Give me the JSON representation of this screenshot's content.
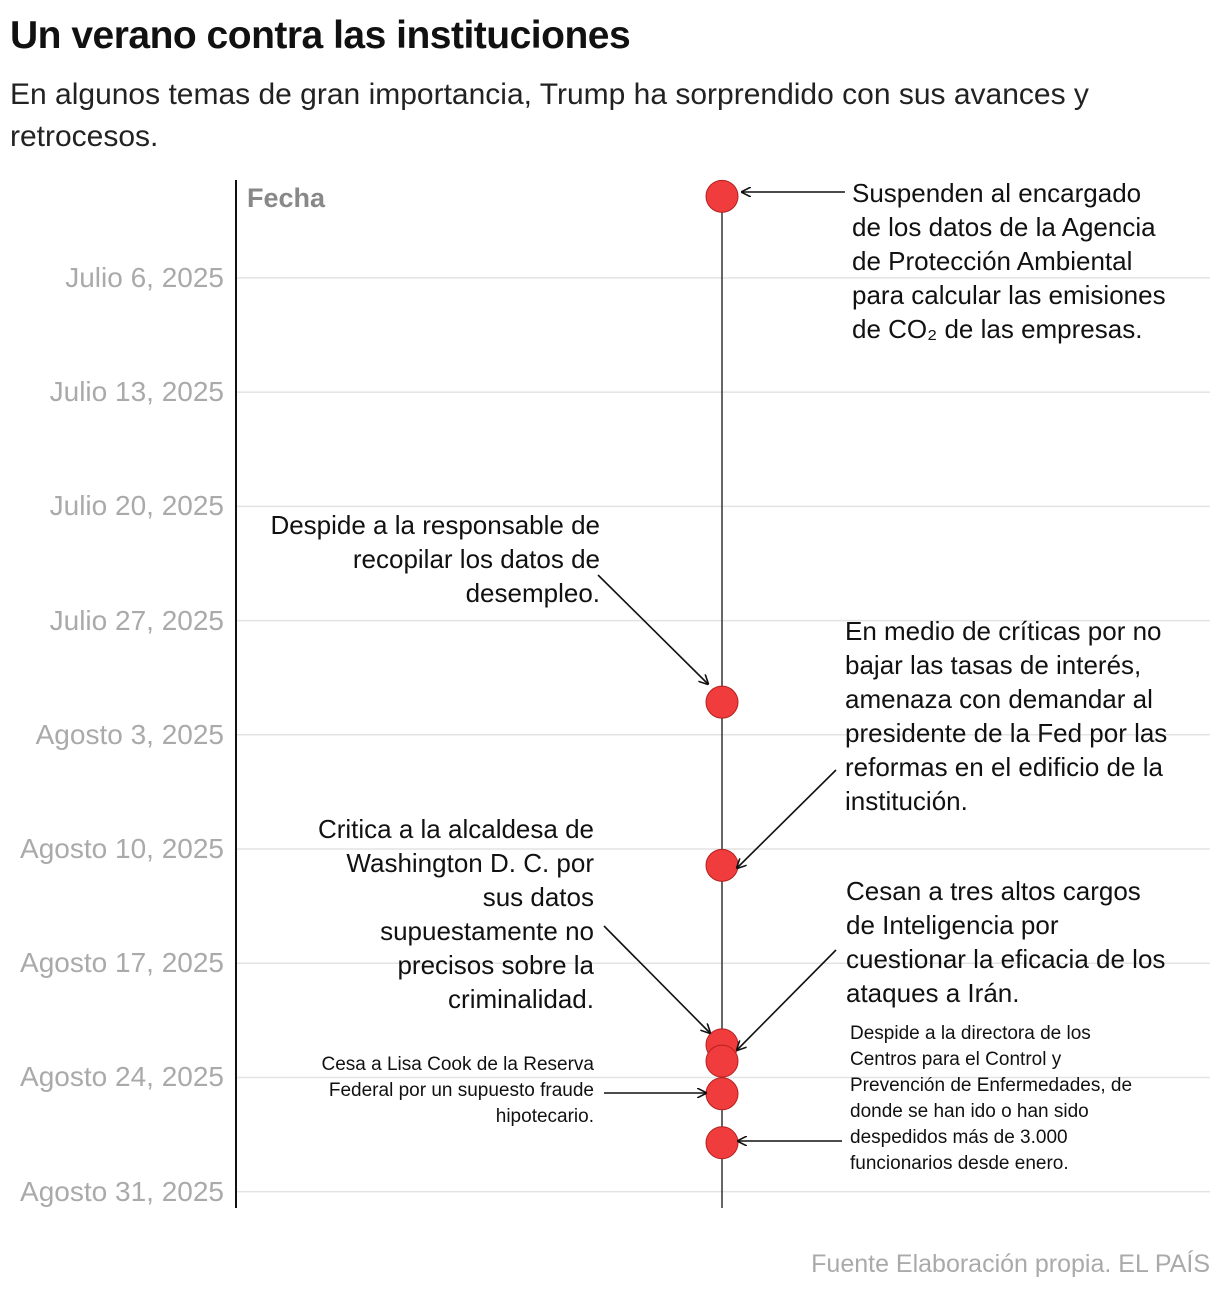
{
  "chart_data": {
    "type": "timeline",
    "title": "Un verano contra las instituciones",
    "subtitle": "En algunos temas de gran importancia, Trump ha sorprendido con sus avances y retrocesos.",
    "y_label": "Fecha",
    "ylim": [
      "2025-06-30",
      "2025-09-01"
    ],
    "yticks": [
      {
        "value": "2025-07-06",
        "label": "Julio 6, 2025"
      },
      {
        "value": "2025-07-13",
        "label": "Julio 13, 2025"
      },
      {
        "value": "2025-07-20",
        "label": "Julio 20, 2025"
      },
      {
        "value": "2025-07-27",
        "label": "Julio 27, 2025"
      },
      {
        "value": "2025-08-03",
        "label": "Agosto 3, 2025"
      },
      {
        "value": "2025-08-10",
        "label": "Agosto 10, 2025"
      },
      {
        "value": "2025-08-17",
        "label": "Agosto 17, 2025"
      },
      {
        "value": "2025-08-24",
        "label": "Agosto 24, 2025"
      },
      {
        "value": "2025-08-31",
        "label": "Agosto 31, 2025"
      }
    ],
    "grid": true,
    "color": "#f03c3c",
    "events": [
      {
        "date": "2025-07-01",
        "label": "Suspenden al encargado de los datos de la Agencia de Protección Ambiental para calcular las emisiones de CO₂ de las empresas."
      },
      {
        "date": "2025-08-01",
        "label": "Despide a la responsable de recopilar los datos de desempleo."
      },
      {
        "date": "2025-08-11",
        "label": "En medio de críticas por no bajar las tasas de interés, amenaza con demandar al presidente de la Fed por las reformas en el edificio de la institución."
      },
      {
        "date": "2025-08-22",
        "label": "Critica a la alcaldesa de Washington D. C. por sus datos supuestamente no precisos sobre la criminalidad."
      },
      {
        "date": "2025-08-23",
        "label": "Cesan a tres altos cargos de Inteligencia por cuestionar la eficacia de los ataques a Irán."
      },
      {
        "date": "2025-08-25",
        "label": "Cesa a Lisa Cook de la Reserva Federal por un supuesto fraude hipotecario."
      },
      {
        "date": "2025-08-28",
        "label": "Despide a la directora de los Centros para el Control y Prevención de Enfermedades, de donde se han ido o han sido despedidos más de 3.000 funcionarios desde enero."
      }
    ],
    "source": "Fuente Elaboración propia. EL PAÍS"
  }
}
